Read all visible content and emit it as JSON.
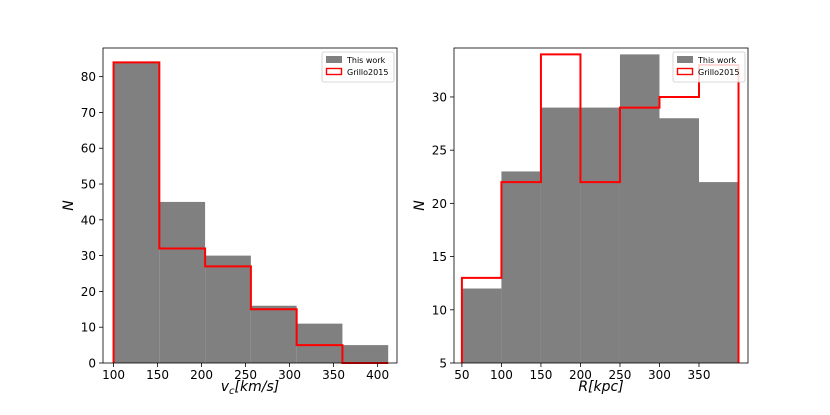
{
  "chart_data": [
    {
      "type": "histogram",
      "xlabel": "v_c[km/s]",
      "xlabel_parts": {
        "main": "v",
        "sub": "c",
        "rest": "[km/s]"
      },
      "ylabel": "N",
      "xlim": [
        88,
        422
      ],
      "ylim": [
        0,
        88
      ],
      "xticks": [
        100,
        150,
        200,
        250,
        300,
        350,
        400
      ],
      "yticks": [
        0,
        10,
        20,
        30,
        40,
        50,
        60,
        70,
        80
      ],
      "legend_placement": "top-right",
      "series": [
        {
          "name": "This work",
          "style": "filled",
          "color": "#808080",
          "bins": [
            100,
            152,
            204,
            256,
            308,
            360,
            412
          ],
          "values": [
            84,
            45,
            30,
            16,
            11,
            5
          ]
        },
        {
          "name": "Grillo2015",
          "style": "step",
          "color": "#ff0000",
          "bins": [
            100,
            152,
            204,
            256,
            308,
            360,
            412
          ],
          "values": [
            84,
            32,
            27,
            15,
            5,
            0
          ]
        }
      ]
    },
    {
      "type": "histogram",
      "xlabel": "R[kpc]",
      "ylabel": "N",
      "xlim": [
        40,
        412
      ],
      "ylim": [
        5,
        34.6
      ],
      "xticks": [
        50,
        100,
        150,
        200,
        250,
        300,
        350
      ],
      "yticks": [
        5,
        10,
        15,
        20,
        25,
        30
      ],
      "legend_placement": "top-right",
      "series": [
        {
          "name": "This work",
          "style": "filled",
          "color": "#808080",
          "bins": [
            50,
            100,
            150,
            200,
            250,
            300,
            350,
            400
          ],
          "values": [
            12,
            23,
            29,
            29,
            34,
            28,
            22
          ]
        },
        {
          "name": "Grillo2015",
          "style": "step",
          "color": "#ff0000",
          "bins": [
            50,
            100,
            150,
            200,
            250,
            300,
            350,
            400
          ],
          "values": [
            13,
            22,
            34,
            22,
            29,
            30,
            33
          ]
        }
      ]
    }
  ]
}
